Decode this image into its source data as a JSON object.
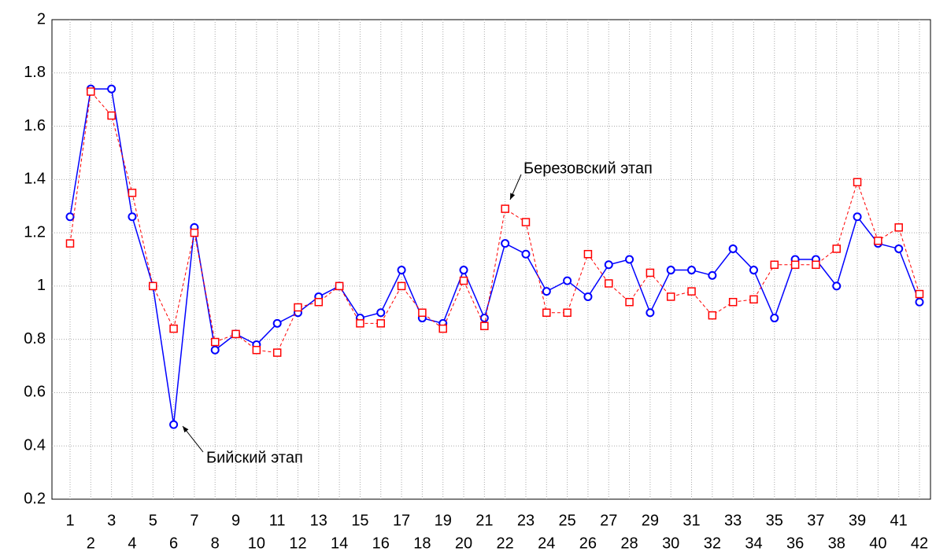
{
  "chart_data": {
    "type": "line",
    "categories": [
      "1",
      "2",
      "3",
      "4",
      "5",
      "6",
      "7",
      "8",
      "9",
      "10",
      "11",
      "12",
      "13",
      "14",
      "15",
      "16",
      "17",
      "18",
      "19",
      "20",
      "21",
      "22",
      "23",
      "24",
      "25",
      "26",
      "27",
      "28",
      "29",
      "30",
      "31",
      "32",
      "33",
      "34",
      "35",
      "36",
      "37",
      "38",
      "39",
      "40",
      "41",
      "42"
    ],
    "series": [
      {
        "color": "#0000ff",
        "marker": "circle",
        "line_style": "solid",
        "values": [
          1.26,
          1.74,
          1.74,
          1.26,
          1.0,
          0.48,
          1.22,
          0.76,
          0.82,
          0.78,
          0.86,
          0.9,
          0.96,
          1.0,
          0.88,
          0.9,
          1.06,
          0.88,
          0.86,
          1.06,
          0.88,
          1.16,
          1.12,
          0.98,
          1.02,
          0.96,
          1.08,
          1.1,
          0.9,
          1.06,
          1.06,
          1.04,
          1.14,
          1.06,
          0.88,
          1.1,
          1.1,
          1.0,
          1.26,
          1.16,
          1.14,
          0.94
        ]
      },
      {
        "color": "#ff0000",
        "marker": "square",
        "line_style": "dashed",
        "values": [
          1.16,
          1.73,
          1.64,
          1.35,
          1.0,
          0.84,
          1.2,
          0.79,
          0.82,
          0.76,
          0.75,
          0.92,
          0.94,
          1.0,
          0.86,
          0.86,
          1.0,
          0.9,
          0.84,
          1.02,
          0.85,
          1.29,
          1.24,
          0.9,
          0.9,
          1.12,
          1.01,
          0.94,
          1.05,
          0.96,
          0.98,
          0.89,
          0.94,
          0.95,
          1.08,
          1.08,
          1.08,
          1.14,
          1.39,
          1.17,
          1.22,
          0.97
        ]
      }
    ],
    "ylim": [
      0.2,
      2
    ],
    "yticks": [
      0.2,
      0.4,
      0.6,
      0.8,
      1,
      1.2,
      1.4,
      1.6,
      1.8,
      2
    ],
    "grid": true,
    "annotations": [
      "Бийский этап",
      "Березовский этап"
    ]
  }
}
